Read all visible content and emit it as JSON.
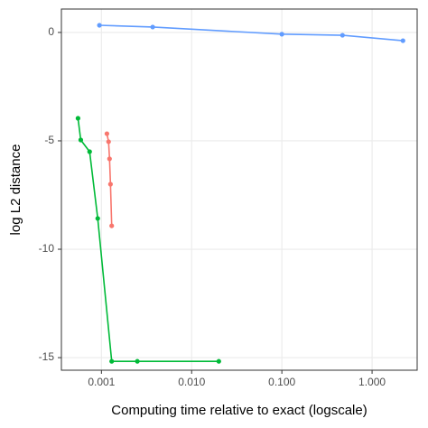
{
  "chart_data": {
    "type": "line",
    "x_label": "Computing time relative to exact (logscale)",
    "y_label": "log L2 distance",
    "x_scale": "log",
    "grid": true,
    "xlim": [
      0.00036,
      3.16
    ],
    "ylim": [
      -15.58,
      1.08
    ],
    "xticks": [
      0.001,
      {
        "value": 0.01,
        "label": "0.010"
      },
      {
        "value": 0.1,
        "label": "0.100"
      },
      {
        "value": 1,
        "label": "1.000"
      }
    ],
    "yticks": [
      -15,
      -10,
      -5,
      0
    ],
    "series": [
      {
        "color": "#619cff",
        "x": [
          0.00095,
          0.0037,
          0.1,
          0.47,
          2.2
        ],
        "values": [
          0.33,
          0.25,
          -0.08,
          -0.13,
          -0.38
        ]
      },
      {
        "color": "#f8766d",
        "x": [
          0.00115,
          0.0012,
          0.00123,
          0.00126,
          0.0013
        ],
        "values": [
          -4.67,
          -5.04,
          -5.83,
          -7.0,
          -8.92
        ]
      },
      {
        "color": "#00ba38",
        "x": [
          0.00055,
          0.00059,
          0.00074,
          0.00091,
          0.0013,
          0.0025,
          0.02
        ],
        "values": [
          -3.96,
          -4.96,
          -5.5,
          -8.58,
          -15.17,
          -15.17,
          -15.17
        ]
      }
    ]
  }
}
